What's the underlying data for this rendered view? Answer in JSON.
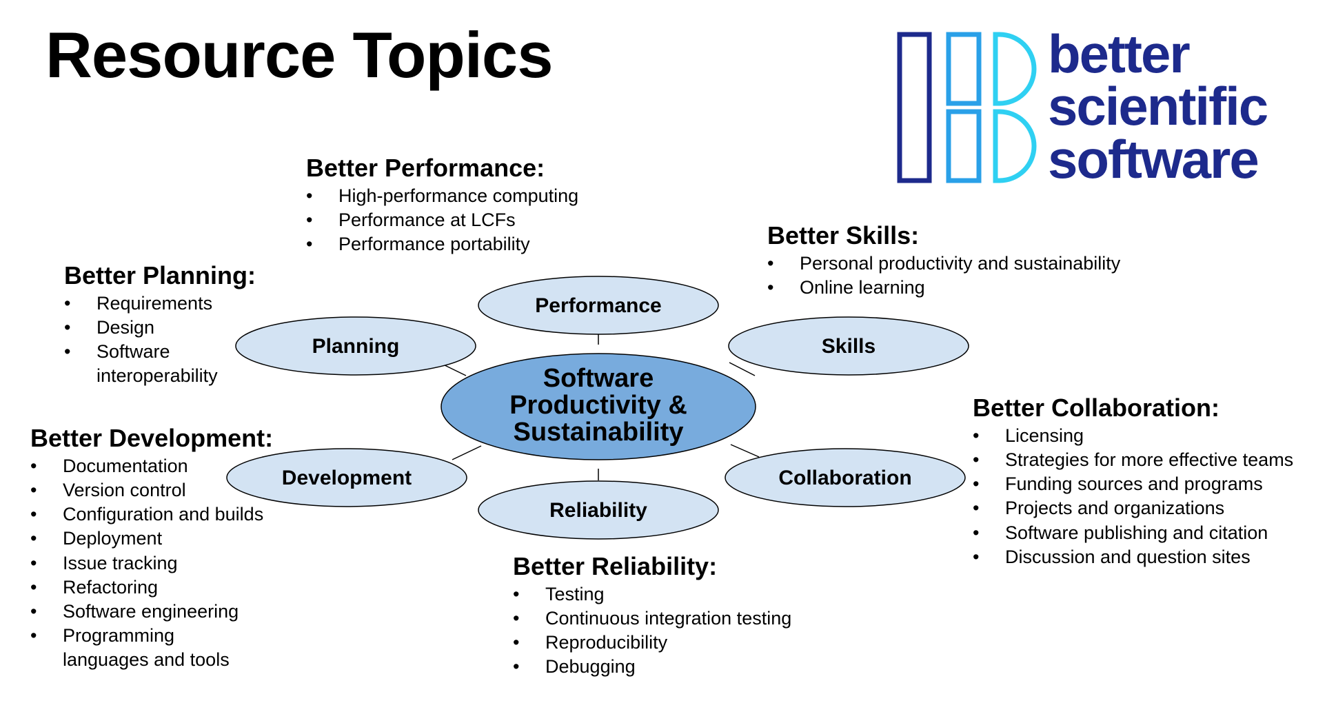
{
  "title": "Resource Topics",
  "logo": {
    "lines": [
      "better",
      "scientific",
      "software"
    ],
    "colors": {
      "dark": "#1d2a8c",
      "mid": "#2aa0e8",
      "light": "#2fd0f2"
    }
  },
  "colors": {
    "center_fill": "#78abdd",
    "node_fill": "#d3e3f3",
    "stroke": "#000000"
  },
  "center": {
    "lines": [
      "Software",
      "Productivity &",
      "Sustainability"
    ]
  },
  "nodes": {
    "performance": "Performance",
    "planning": "Planning",
    "skills": "Skills",
    "development": "Development",
    "collaboration": "Collaboration",
    "reliability": "Reliability"
  },
  "topics": {
    "performance": {
      "heading": "Better Performance:",
      "items": [
        "High-performance computing",
        "Performance at LCFs",
        "Performance portability"
      ]
    },
    "planning": {
      "heading": "Better Planning:",
      "items": [
        "Requirements",
        "Design",
        "Software interoperability"
      ]
    },
    "skills": {
      "heading": "Better Skills:",
      "items": [
        "Personal productivity and sustainability",
        "Online learning"
      ]
    },
    "development": {
      "heading": "Better Development:",
      "items": [
        "Documentation",
        "Version control",
        "Configuration and builds",
        "Deployment",
        "Issue tracking",
        "Refactoring",
        "Software engineering",
        "Programming languages and tools"
      ]
    },
    "collaboration": {
      "heading": "Better Collaboration:",
      "items": [
        "Licensing",
        "Strategies for more effective teams",
        "Funding sources and programs",
        "Projects and organizations",
        "Software publishing and citation",
        "Discussion and question sites"
      ]
    },
    "reliability": {
      "heading": "Better Reliability:",
      "items": [
        "Testing",
        "Continuous integration testing",
        "Reproducibility",
        "Debugging"
      ]
    }
  }
}
